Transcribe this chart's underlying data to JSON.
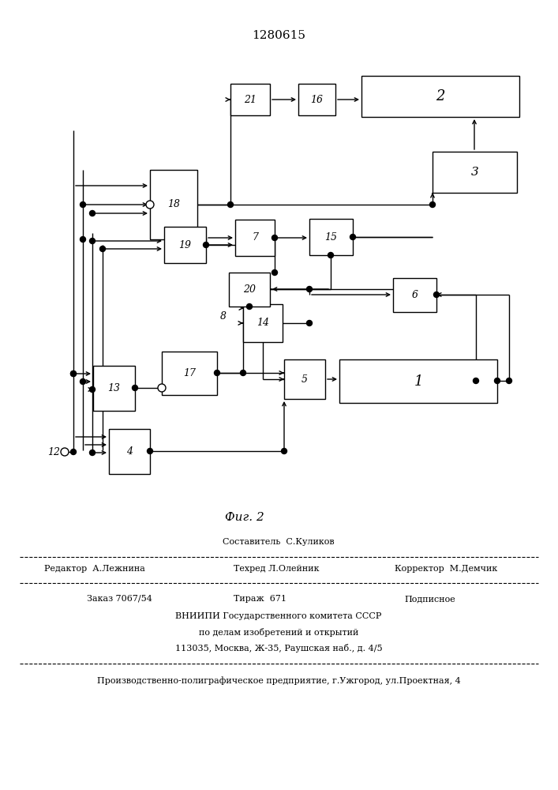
{
  "title": "1280615",
  "fig_label": "Фиг. 2",
  "background_color": "#ffffff",
  "line_color": "#000000",
  "footer": {
    "sestavitel": "Составитель  С.Куликов",
    "redaktor": "Редактор  А.Лежнина",
    "tehred": "Техред Л.Олейник",
    "korrektor": "Корректор  М.Демчик",
    "zakaz": "Заказ 7067/54",
    "tirazh": "Тираж  671",
    "podpisnoe": "Подписное",
    "vniip1": "ВНИИПИ Государственного комитета СССР",
    "vniip2": "по делам изобретений и открытий",
    "vniip3": "113035, Москва, Ж-35, Раушская наб., д. 4/5",
    "zavod": "Производственно-полиграфическое предприятие, г.Ужгород, ул.Проектная, 4"
  }
}
